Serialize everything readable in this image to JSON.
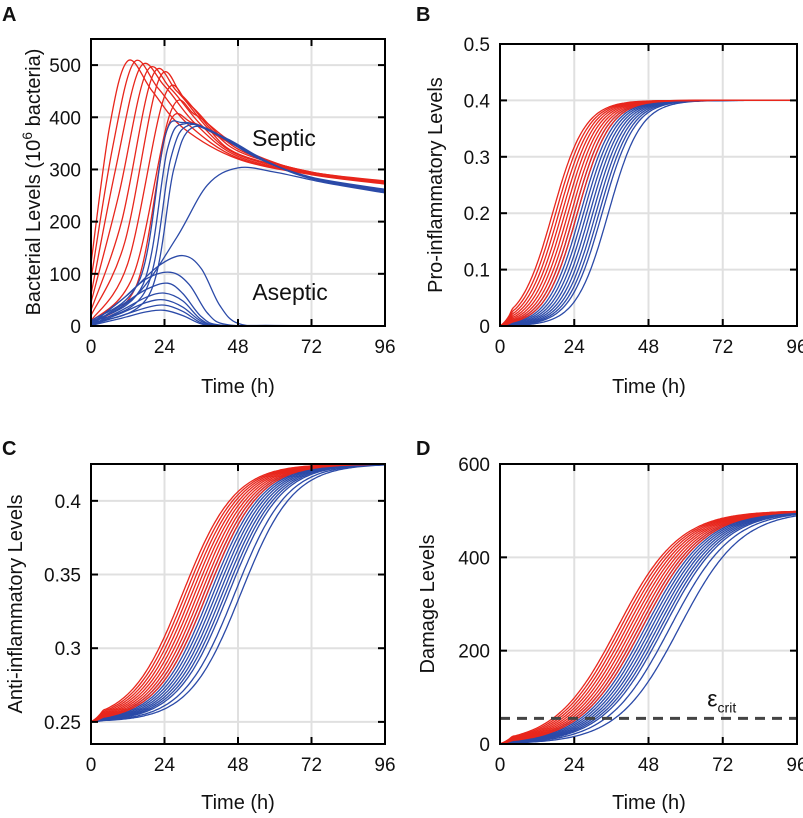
{
  "colors": {
    "septic": "#e8261c",
    "aseptic": "#2b4aa8",
    "grid": "#e0e0e0",
    "threshold": "#444444"
  },
  "chart_data": [
    {
      "panel": "A",
      "type": "line",
      "xlabel": "Time (h)",
      "ylabel_parts": {
        "main": "Bacterial Levels (10",
        "sup": "6",
        "tail": " bacteria)"
      },
      "xlim": [
        0,
        96
      ],
      "ylim": [
        0,
        550
      ],
      "xticks": [
        0,
        24,
        48,
        72,
        96
      ],
      "yticks": [
        0,
        100,
        200,
        300,
        400,
        500
      ],
      "annotations": [
        {
          "text": "Septic",
          "x": 63,
          "y": 345
        },
        {
          "text": "Aseptic",
          "x": 65,
          "y": 50
        }
      ],
      "series": [
        {
          "name": "septic",
          "color": "#e8261c",
          "points": [
            [
              0,
              120
            ],
            [
              6,
              380
            ],
            [
              12,
              508
            ],
            [
              20,
              450
            ],
            [
              30,
              380
            ],
            [
              48,
              320
            ],
            [
              72,
              290
            ],
            [
              96,
              272
            ]
          ]
        },
        {
          "name": "septic",
          "color": "#e8261c",
          "points": [
            [
              0,
              90
            ],
            [
              7,
              340
            ],
            [
              14,
              505
            ],
            [
              22,
              455
            ],
            [
              32,
              385
            ],
            [
              48,
              322
            ],
            [
              72,
              291
            ],
            [
              96,
              273
            ]
          ]
        },
        {
          "name": "septic",
          "color": "#e8261c",
          "points": [
            [
              0,
              60
            ],
            [
              8,
              300
            ],
            [
              16,
              495
            ],
            [
              24,
              460
            ],
            [
              34,
              388
            ],
            [
              48,
              325
            ],
            [
              72,
              292
            ],
            [
              96,
              274
            ]
          ]
        },
        {
          "name": "septic",
          "color": "#e8261c",
          "points": [
            [
              0,
              45
            ],
            [
              9,
              250
            ],
            [
              18,
              485
            ],
            [
              26,
              455
            ],
            [
              36,
              385
            ],
            [
              48,
              328
            ],
            [
              72,
              293
            ],
            [
              96,
              275
            ]
          ]
        },
        {
          "name": "septic",
          "color": "#e8261c",
          "points": [
            [
              0,
              30
            ],
            [
              10,
              200
            ],
            [
              20,
              478
            ],
            [
              28,
              450
            ],
            [
              38,
              380
            ],
            [
              48,
              330
            ],
            [
              72,
              294
            ],
            [
              96,
              276
            ]
          ]
        },
        {
          "name": "septic",
          "color": "#e8261c",
          "points": [
            [
              0,
              20
            ],
            [
              11,
              160
            ],
            [
              22,
              470
            ],
            [
              30,
              440
            ],
            [
              40,
              372
            ],
            [
              50,
              330
            ],
            [
              72,
              295
            ],
            [
              96,
              277
            ]
          ]
        },
        {
          "name": "septic",
          "color": "#e8261c",
          "points": [
            [
              0,
              10
            ],
            [
              12,
              120
            ],
            [
              24,
              440
            ],
            [
              32,
              425
            ],
            [
              42,
              365
            ],
            [
              52,
              328
            ],
            [
              72,
              295
            ],
            [
              96,
              278
            ]
          ]
        },
        {
          "name": "septic",
          "color": "#e8261c",
          "points": [
            [
              0,
              8
            ],
            [
              14,
              100
            ],
            [
              26,
              410
            ],
            [
              34,
              405
            ],
            [
              44,
              360
            ],
            [
              54,
              325
            ],
            [
              72,
              294
            ],
            [
              96,
              276
            ]
          ]
        },
        {
          "name": "septic",
          "color": "#e8261c",
          "points": [
            [
              0,
              6
            ],
            [
              15,
              80
            ],
            [
              25,
              380
            ],
            [
              33,
              390
            ],
            [
              44,
              355
            ],
            [
              56,
              322
            ],
            [
              72,
              293
            ],
            [
              96,
              275
            ]
          ]
        },
        {
          "name": "aseptic",
          "color": "#2b4aa8",
          "points": [
            [
              0,
              10
            ],
            [
              16,
              90
            ],
            [
              24,
              360
            ],
            [
              30,
              390
            ],
            [
              40,
              370
            ],
            [
              55,
              320
            ],
            [
              72,
              285
            ],
            [
              96,
              262
            ]
          ]
        },
        {
          "name": "aseptic",
          "color": "#2b4aa8",
          "points": [
            [
              0,
              8
            ],
            [
              17,
              80
            ],
            [
              25,
              340
            ],
            [
              31,
              388
            ],
            [
              42,
              365
            ],
            [
              56,
              318
            ],
            [
              72,
              284
            ],
            [
              96,
              260
            ]
          ]
        },
        {
          "name": "aseptic",
          "color": "#2b4aa8",
          "points": [
            [
              0,
              7
            ],
            [
              18,
              70
            ],
            [
              26,
              320
            ],
            [
              32,
              385
            ],
            [
              43,
              362
            ],
            [
              57,
              316
            ],
            [
              72,
              283
            ],
            [
              96,
              258
            ]
          ]
        },
        {
          "name": "aseptic",
          "color": "#2b4aa8",
          "points": [
            [
              0,
              5
            ],
            [
              19,
              60
            ],
            [
              27,
              300
            ],
            [
              33,
              380
            ],
            [
              44,
              360
            ],
            [
              58,
              314
            ],
            [
              72,
              282
            ],
            [
              96,
              256
            ]
          ]
        },
        {
          "name": "aseptic",
          "color": "#2b4aa8",
          "points": [
            [
              0,
              4
            ],
            [
              15,
              60
            ],
            [
              28,
              170
            ],
            [
              38,
              270
            ],
            [
              48,
              303
            ],
            [
              60,
              295
            ],
            [
              76,
              275
            ],
            [
              96,
              255
            ]
          ]
        },
        {
          "name": "aseptic",
          "color": "#2b4aa8",
          "points": [
            [
              0,
              4
            ],
            [
              12,
              60
            ],
            [
              22,
              115
            ],
            [
              30,
              135
            ],
            [
              36,
              110
            ],
            [
              42,
              40
            ],
            [
              48,
              5
            ],
            [
              60,
              1
            ],
            [
              96,
              0
            ]
          ]
        },
        {
          "name": "aseptic",
          "color": "#2b4aa8",
          "points": [
            [
              0,
              3
            ],
            [
              10,
              50
            ],
            [
              18,
              90
            ],
            [
              26,
              103
            ],
            [
              32,
              80
            ],
            [
              38,
              25
            ],
            [
              44,
              3
            ],
            [
              60,
              0
            ],
            [
              96,
              0
            ]
          ]
        },
        {
          "name": "aseptic",
          "color": "#2b4aa8",
          "points": [
            [
              0,
              3
            ],
            [
              10,
              40
            ],
            [
              18,
              70
            ],
            [
              25,
              82
            ],
            [
              30,
              62
            ],
            [
              36,
              18
            ],
            [
              42,
              2
            ],
            [
              60,
              0
            ],
            [
              96,
              0
            ]
          ]
        },
        {
          "name": "aseptic",
          "color": "#2b4aa8",
          "points": [
            [
              0,
              2
            ],
            [
              10,
              30
            ],
            [
              18,
              55
            ],
            [
              24,
              63
            ],
            [
              30,
              48
            ],
            [
              36,
              12
            ],
            [
              42,
              1
            ],
            [
              60,
              0
            ],
            [
              96,
              0
            ]
          ]
        },
        {
          "name": "aseptic",
          "color": "#2b4aa8",
          "points": [
            [
              0,
              2
            ],
            [
              10,
              25
            ],
            [
              18,
              45
            ],
            [
              24,
              50
            ],
            [
              30,
              36
            ],
            [
              36,
              9
            ],
            [
              42,
              1
            ],
            [
              60,
              0
            ],
            [
              96,
              0
            ]
          ]
        },
        {
          "name": "aseptic",
          "color": "#2b4aa8",
          "points": [
            [
              0,
              2
            ],
            [
              10,
              20
            ],
            [
              18,
              35
            ],
            [
              24,
              40
            ],
            [
              30,
              28
            ],
            [
              36,
              6
            ],
            [
              42,
              0
            ],
            [
              60,
              0
            ],
            [
              96,
              0
            ]
          ]
        },
        {
          "name": "aseptic",
          "color": "#2b4aa8",
          "points": [
            [
              0,
              1
            ],
            [
              10,
              15
            ],
            [
              18,
              27
            ],
            [
              24,
              30
            ],
            [
              30,
              20
            ],
            [
              36,
              4
            ],
            [
              42,
              0
            ],
            [
              60,
              0
            ],
            [
              96,
              0
            ]
          ]
        }
      ]
    },
    {
      "panel": "B",
      "type": "line",
      "xlabel": "Time (h)",
      "ylabel": "Pro-inflammatory Levels",
      "xlim": [
        0,
        96
      ],
      "ylim": [
        0,
        0.5
      ],
      "xticks": [
        0,
        24,
        48,
        72,
        96
      ],
      "yticks": [
        0,
        0.1,
        0.2,
        0.3,
        0.4,
        0.5
      ],
      "ytick_labels": [
        "0",
        "0.1",
        "0.2",
        "0.3",
        "0.4",
        "0.5"
      ],
      "curve_model": {
        "kind": "logistic",
        "base": 0,
        "top": 0.4,
        "width": 5.2
      },
      "septic_midpoints": [
        17,
        18,
        19,
        20,
        21,
        22,
        23,
        24,
        25
      ],
      "aseptic_midpoints": [
        24,
        25,
        26,
        27,
        28,
        29,
        30,
        31,
        32,
        33,
        35
      ]
    },
    {
      "panel": "C",
      "type": "line",
      "xlabel": "Time (h)",
      "ylabel": "Anti-inflammatory Levels",
      "xlim": [
        0,
        96
      ],
      "ylim": [
        0.235,
        0.425
      ],
      "xticks": [
        0,
        24,
        48,
        72,
        96
      ],
      "yticks": [
        0.25,
        0.3,
        0.35,
        0.4
      ],
      "ytick_labels": [
        "0.25",
        "0.3",
        "0.35",
        "0.4"
      ],
      "curve_model": {
        "kind": "logistic",
        "base": 0.25,
        "top": 0.425,
        "width": 8.5
      },
      "septic_midpoints": [
        30,
        31,
        32,
        33,
        34,
        35,
        36,
        37,
        38
      ],
      "aseptic_midpoints": [
        37,
        38,
        39,
        40,
        41,
        42,
        43,
        44,
        45,
        47,
        49
      ]
    },
    {
      "panel": "D",
      "type": "line",
      "xlabel": "Time (h)",
      "ylabel": "Damage Levels",
      "xlim": [
        0,
        96
      ],
      "ylim": [
        0,
        600
      ],
      "xticks": [
        0,
        24,
        48,
        72,
        96
      ],
      "yticks": [
        0,
        200,
        400,
        600
      ],
      "ytick_labels": [
        "0",
        "200",
        "400",
        "600"
      ],
      "curve_model": {
        "kind": "logistic",
        "base": 0,
        "top": 500,
        "width": 10
      },
      "septic_midpoints": [
        38,
        39,
        40,
        41,
        42,
        43,
        44,
        45,
        46
      ],
      "aseptic_midpoints": [
        45,
        46,
        47,
        48,
        49,
        50,
        51,
        52,
        53,
        55,
        58
      ],
      "threshold": {
        "y": 55,
        "label_main": "ε",
        "label_sub": "crit",
        "label_x": 67,
        "label_y": 80
      }
    }
  ]
}
